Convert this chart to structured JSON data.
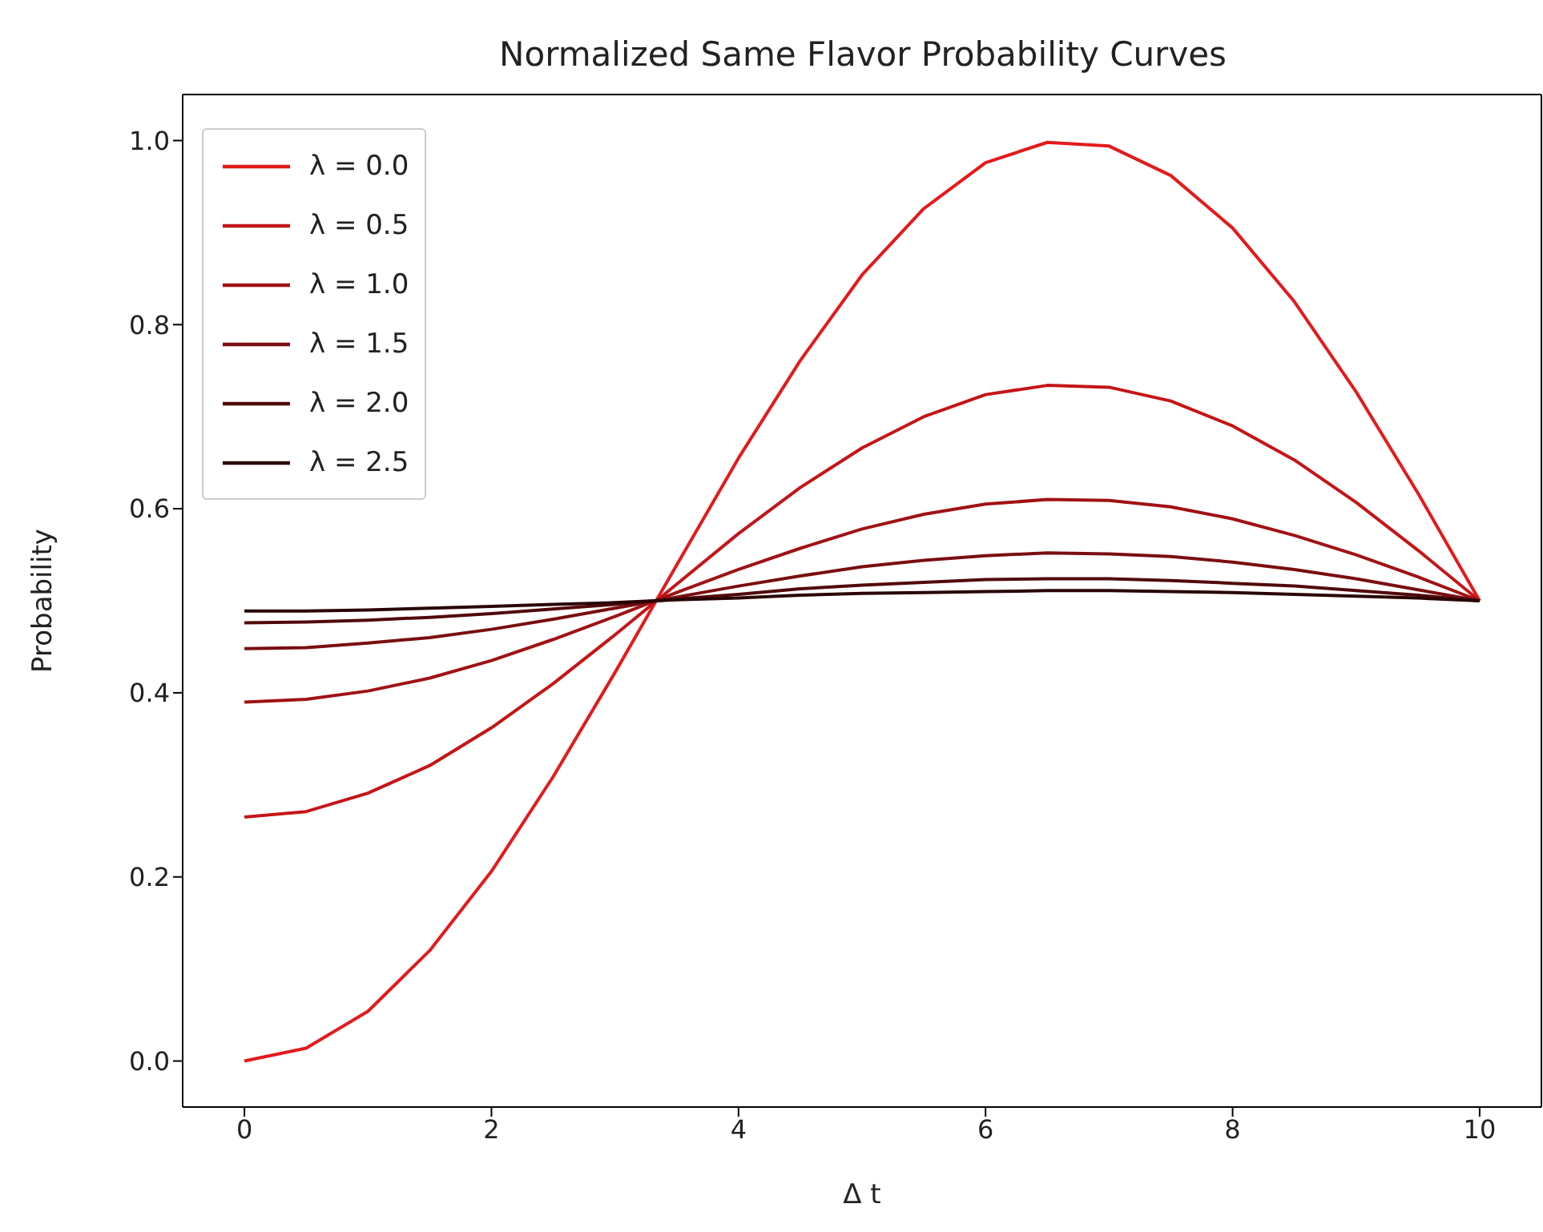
{
  "chart_data": {
    "type": "line",
    "title": "Normalized Same Flavor Probability Curves",
    "xlabel": "Δ t",
    "ylabel": "Probability",
    "x": [
      0,
      0.5,
      1,
      1.5,
      2,
      2.5,
      3,
      3.5,
      4,
      4.5,
      5,
      5.5,
      6,
      6.5,
      7,
      7.5,
      8,
      8.5,
      9,
      9.5,
      10
    ],
    "series": [
      {
        "name": "λ = 0.0",
        "color": "#e31a1c",
        "values": [
          0,
          0.014,
          0.054,
          0.12,
          0.206,
          0.309,
          0.422,
          0.539,
          0.655,
          0.761,
          0.854,
          0.926,
          0.976,
          0.998,
          0.994,
          0.962,
          0.905,
          0.825,
          0.727,
          0.617,
          0.5
        ]
      },
      {
        "name": "λ = 0.5",
        "color": "#c41518",
        "values": [
          0.265,
          0.271,
          0.291,
          0.321,
          0.362,
          0.41,
          0.463,
          0.518,
          0.573,
          0.623,
          0.666,
          0.7,
          0.724,
          0.734,
          0.732,
          0.717,
          0.69,
          0.653,
          0.607,
          0.555,
          0.5
        ]
      },
      {
        "name": "λ = 1.0",
        "color": "#a01214",
        "values": [
          0.39,
          0.393,
          0.402,
          0.416,
          0.435,
          0.458,
          0.483,
          0.509,
          0.534,
          0.557,
          0.578,
          0.594,
          0.605,
          0.61,
          0.609,
          0.602,
          0.589,
          0.571,
          0.55,
          0.526,
          0.5
        ]
      },
      {
        "name": "λ = 1.5",
        "color": "#7a0e10",
        "values": [
          0.448,
          0.449,
          0.454,
          0.46,
          0.469,
          0.48,
          0.492,
          0.504,
          0.516,
          0.527,
          0.537,
          0.544,
          0.549,
          0.552,
          0.551,
          0.548,
          0.542,
          0.534,
          0.524,
          0.512,
          0.5
        ]
      },
      {
        "name": "λ = 2.0",
        "color": "#52090a",
        "values": [
          0.476,
          0.477,
          0.479,
          0.482,
          0.486,
          0.491,
          0.496,
          0.502,
          0.507,
          0.513,
          0.517,
          0.52,
          0.523,
          0.524,
          0.524,
          0.522,
          0.519,
          0.516,
          0.511,
          0.506,
          0.5
        ]
      },
      {
        "name": "λ = 2.5",
        "color": "#2a0405",
        "values": [
          0.489,
          0.489,
          0.49,
          0.492,
          0.494,
          0.496,
          0.498,
          0.501,
          0.503,
          0.506,
          0.508,
          0.509,
          0.51,
          0.511,
          0.511,
          0.51,
          0.509,
          0.507,
          0.505,
          0.503,
          0.5
        ]
      }
    ],
    "xlim": [
      -0.5,
      10.5
    ],
    "xticks": [
      0,
      2,
      4,
      6,
      8,
      10
    ],
    "ylim": [
      -0.05,
      1.05
    ],
    "yticks": [
      {
        "value": 0,
        "label": "0.0"
      },
      0.2,
      0.4,
      0.6,
      0.8,
      {
        "value": 1,
        "label": "1.0"
      }
    ],
    "grid": false,
    "legend": "top left",
    "marker": "none",
    "line_style": "solid"
  }
}
